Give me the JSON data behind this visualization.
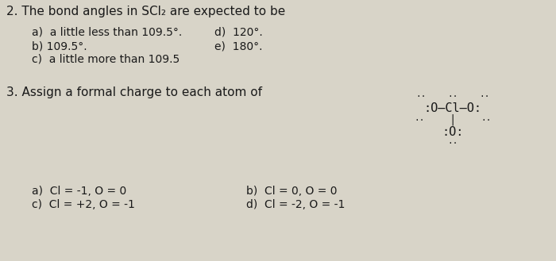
{
  "background_color": "#d8d4c8",
  "text_color": "#1a1a1a",
  "title_q2": "2. The bond angles in SCl₂ are expected to be",
  "q2_options_left": [
    "a)  a little less than 109.5°.",
    "b) 109.5°.",
    "c)  a little more than 109.5"
  ],
  "q2_options_right": [
    "d)  120°.",
    "e)  180°."
  ],
  "title_q3": "3. Assign a formal charge to each atom of",
  "q3_options_left": [
    "a)  Cl = -1, O = 0",
    "c)  Cl = +2, O = -1"
  ],
  "q3_options_right": [
    "b)  Cl = 0, O = 0",
    "d)  Cl = -2, O = -1"
  ],
  "fontsize_title": 11,
  "fontsize_body": 10,
  "fontsize_dot": 8,
  "fontsize_mol": 11
}
